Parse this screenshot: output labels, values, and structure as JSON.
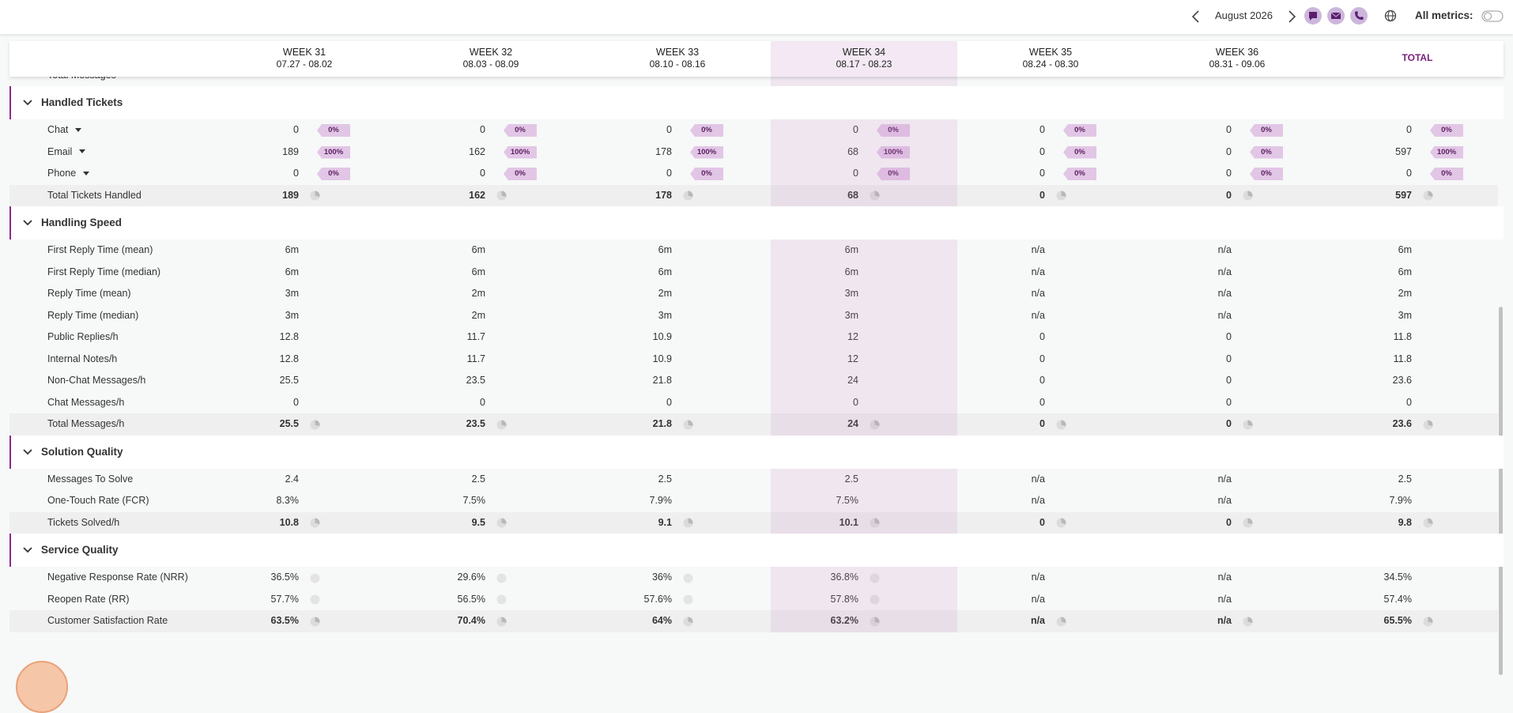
{
  "topbar": {
    "month": "August 2026",
    "all_metrics": "All metrics:"
  },
  "highlight_column": 3,
  "columns": [
    {
      "week": "WEEK 31",
      "dates": "07.27 - 08.02"
    },
    {
      "week": "WEEK 32",
      "dates": "08.03 - 08.09"
    },
    {
      "week": "WEEK 33",
      "dates": "08.10 - 08.16"
    },
    {
      "week": "WEEK 34",
      "dates": "08.17 - 08.23"
    },
    {
      "week": "WEEK 35",
      "dates": "08.24 - 08.30"
    },
    {
      "week": "WEEK 36",
      "dates": "08.31 - 09.06"
    },
    {
      "week": "TOTAL"
    }
  ],
  "partial_row": {
    "label": "Total Messages"
  },
  "sections": [
    {
      "title": "Handled Tickets",
      "rows": [
        {
          "label": "Chat",
          "dropdown": true,
          "values": [
            "0",
            "0",
            "0",
            "0",
            "0",
            "0",
            "0"
          ],
          "badges": [
            "0%",
            "0%",
            "0%",
            "0%",
            "0%",
            "0%",
            "0%"
          ]
        },
        {
          "label": "Email",
          "dropdown": true,
          "values": [
            "189",
            "162",
            "178",
            "68",
            "0",
            "0",
            "597"
          ],
          "badges": [
            "100%",
            "100%",
            "100%",
            "100%",
            "0%",
            "0%",
            "100%"
          ]
        },
        {
          "label": "Phone",
          "dropdown": true,
          "values": [
            "0",
            "0",
            "0",
            "0",
            "0",
            "0",
            "0"
          ],
          "badges": [
            "0%",
            "0%",
            "0%",
            "0%",
            "0%",
            "0%",
            "0%"
          ]
        },
        {
          "label": "Total Tickets Handled",
          "total": true,
          "values": [
            "189",
            "162",
            "178",
            "68",
            "0",
            "0",
            "597"
          ]
        }
      ]
    },
    {
      "title": "Handling Speed",
      "rows": [
        {
          "label": "First Reply Time (mean)",
          "values": [
            "6m",
            "6m",
            "6m",
            "6m",
            "n/a",
            "n/a",
            "6m"
          ]
        },
        {
          "label": "First Reply Time (median)",
          "values": [
            "6m",
            "6m",
            "6m",
            "6m",
            "n/a",
            "n/a",
            "6m"
          ]
        },
        {
          "label": "Reply Time (mean)",
          "values": [
            "3m",
            "2m",
            "2m",
            "3m",
            "n/a",
            "n/a",
            "2m"
          ]
        },
        {
          "label": "Reply Time (median)",
          "values": [
            "3m",
            "2m",
            "3m",
            "3m",
            "n/a",
            "n/a",
            "3m"
          ]
        },
        {
          "label": "Public Replies/h",
          "values": [
            "12.8",
            "11.7",
            "10.9",
            "12",
            "0",
            "0",
            "11.8"
          ]
        },
        {
          "label": "Internal Notes/h",
          "values": [
            "12.8",
            "11.7",
            "10.9",
            "12",
            "0",
            "0",
            "11.8"
          ]
        },
        {
          "label": "Non-Chat Messages/h",
          "values": [
            "25.5",
            "23.5",
            "21.8",
            "24",
            "0",
            "0",
            "23.6"
          ]
        },
        {
          "label": "Chat Messages/h",
          "values": [
            "0",
            "0",
            "0",
            "0",
            "0",
            "0",
            "0"
          ]
        },
        {
          "label": "Total Messages/h",
          "total": true,
          "values": [
            "25.5",
            "23.5",
            "21.8",
            "24",
            "0",
            "0",
            "23.6"
          ]
        }
      ]
    },
    {
      "title": "Solution Quality",
      "rows": [
        {
          "label": "Messages To Solve",
          "values": [
            "2.4",
            "2.5",
            "2.5",
            "2.5",
            "n/a",
            "n/a",
            "2.5"
          ]
        },
        {
          "label": "One-Touch Rate (FCR)",
          "values": [
            "8.3%",
            "7.5%",
            "7.9%",
            "7.5%",
            "n/a",
            "n/a",
            "7.9%"
          ]
        },
        {
          "label": "Tickets Solved/h",
          "total": true,
          "values": [
            "10.8",
            "9.5",
            "9.1",
            "10.1",
            "0",
            "0",
            "9.8"
          ]
        }
      ]
    },
    {
      "title": "Service Quality",
      "rows": [
        {
          "label": "Negative Response Rate (NRR)",
          "values": [
            "36.5%",
            "29.6%",
            "36%",
            "36.8%",
            "n/a",
            "n/a",
            "34.5%"
          ],
          "icons": [
            true,
            true,
            true,
            true,
            false,
            false,
            false
          ]
        },
        {
          "label": "Reopen Rate (RR)",
          "values": [
            "57.7%",
            "56.5%",
            "57.6%",
            "57.8%",
            "n/a",
            "n/a",
            "57.4%"
          ],
          "icons": [
            true,
            true,
            true,
            true,
            false,
            false,
            false
          ]
        },
        {
          "label": "Customer Satisfaction Rate",
          "total": true,
          "values": [
            "63.5%",
            "70.4%",
            "64%",
            "63.2%",
            "n/a",
            "n/a",
            "65.5%"
          ]
        }
      ]
    }
  ]
}
